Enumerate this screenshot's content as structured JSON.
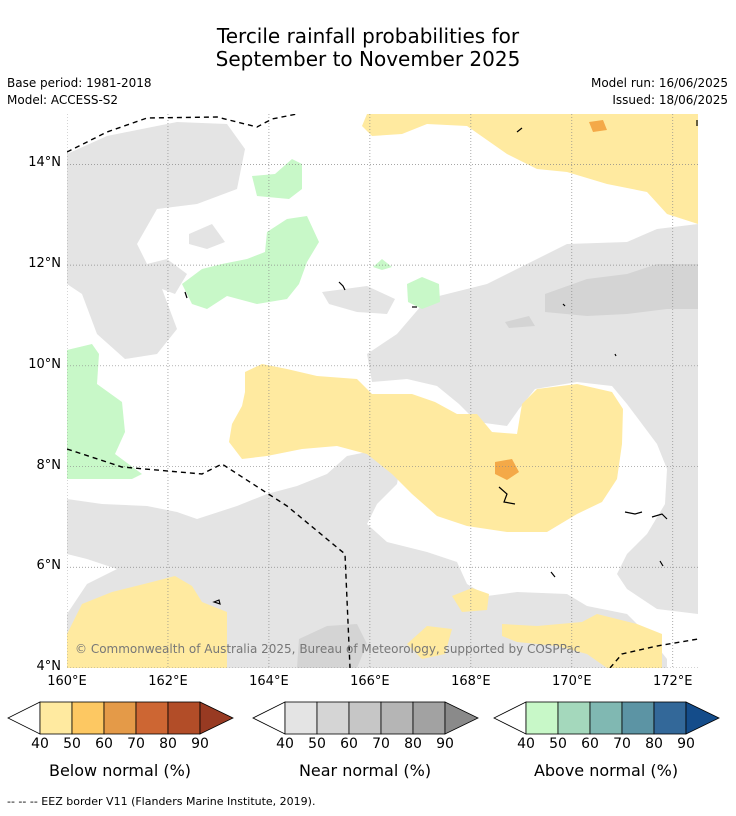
{
  "title": {
    "line1": "Tercile rainfall probabilities for",
    "line2": "September to November 2025"
  },
  "meta": {
    "base_period": "Base period: 1981-2018",
    "model": "Model: ACCESS-S2",
    "model_run": "Model run: 16/06/2025",
    "issued": "Issued: 18/06/2025"
  },
  "map": {
    "lon_ticks": [
      "160°E",
      "162°E",
      "164°E",
      "166°E",
      "168°E",
      "170°E",
      "172°E"
    ],
    "lat_ticks": [
      "14°N",
      "12°N",
      "10°N",
      "8°N",
      "6°N",
      "4°N"
    ],
    "lon_values": [
      160,
      162,
      164,
      166,
      168,
      170,
      172
    ],
    "lat_values": [
      14,
      12,
      10,
      8,
      6,
      4
    ],
    "lon_range": [
      160,
      172.5
    ],
    "lat_range": [
      4,
      15
    ],
    "gridlines": true,
    "copyright": "© Commonwealth of Australia 2025, Bureau of Meteorology, supported by COSPPac",
    "colors": {
      "below_40": "#ffeaa0",
      "below_60": "#f4a948",
      "near_40": "#e4e4e4",
      "near_50": "#d4d4d4",
      "above_40": "#c8f8c8",
      "eez": "#000000"
    }
  },
  "legends": [
    {
      "name": "Below normal (%)",
      "ticks": [
        "40",
        "50",
        "60",
        "70",
        "80",
        "90"
      ],
      "colors": [
        "#ffeaa0",
        "#fdc862",
        "#e49a48",
        "#cd6633",
        "#b24d28",
        "#983a22"
      ]
    },
    {
      "name": "Near normal (%)",
      "ticks": [
        "40",
        "50",
        "60",
        "70",
        "80",
        "90"
      ],
      "colors": [
        "#e4e4e4",
        "#d5d5d5",
        "#c6c6c6",
        "#b5b5b5",
        "#a2a2a2",
        "#8a8a8a"
      ]
    },
    {
      "name": "Above normal (%)",
      "ticks": [
        "40",
        "50",
        "60",
        "70",
        "80",
        "90"
      ],
      "colors": [
        "#c8f8c8",
        "#a4d8bc",
        "#80b8b2",
        "#5c94a4",
        "#336899",
        "#144c8a"
      ]
    }
  ],
  "footnote": "--  --  -- EEZ border V11 (Flanders Marine Institute, 2019)."
}
